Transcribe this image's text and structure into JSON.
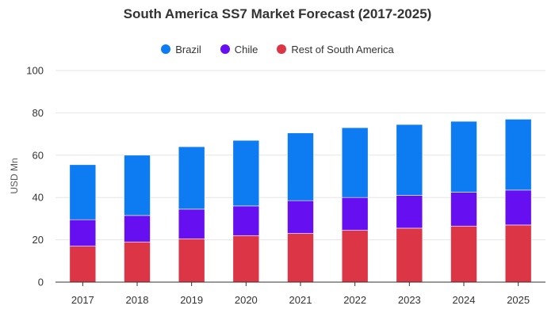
{
  "chart_data": {
    "type": "bar",
    "stacked": true,
    "title": "South America SS7 Market Forecast (2017-2025)",
    "xlabel": "",
    "ylabel": "USD Mn",
    "ylim": [
      0,
      100
    ],
    "yticks": [
      0,
      20,
      40,
      60,
      80,
      100
    ],
    "grid": true,
    "legend_position": "top-center",
    "categories": [
      "2017",
      "2018",
      "2019",
      "2020",
      "2021",
      "2022",
      "2023",
      "2024",
      "2025"
    ],
    "series": [
      {
        "name": "Rest of South America",
        "color": "#dc3545",
        "values": [
          17.0,
          19.0,
          20.5,
          22.0,
          23.0,
          24.5,
          25.5,
          26.5,
          27.0
        ]
      },
      {
        "name": "Chile",
        "color": "#6610f2",
        "values": [
          12.5,
          12.5,
          14.0,
          14.0,
          15.5,
          15.5,
          15.5,
          16.0,
          16.5
        ]
      },
      {
        "name": "Brazil",
        "color": "#0d7bf2",
        "values": [
          26.0,
          28.5,
          29.5,
          31.0,
          32.0,
          33.0,
          33.5,
          33.5,
          33.5
        ]
      }
    ],
    "legend_order": [
      "Brazil",
      "Chile",
      "Rest of South America"
    ]
  }
}
